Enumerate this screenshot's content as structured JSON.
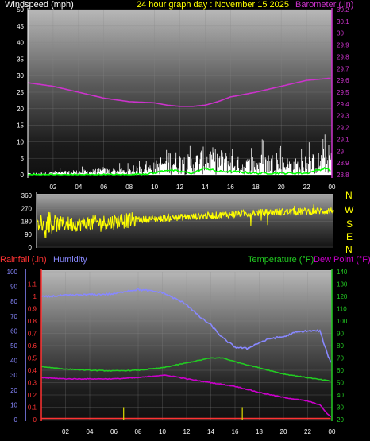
{
  "header": {
    "wind_label": "Windspeed (mph)",
    "graph_title": "24 hour graph day : November 15 2025",
    "baro_label": "Barometer (.in)"
  },
  "middle": {
    "direction_letters": [
      "N",
      "W",
      "S",
      "E",
      "N"
    ]
  },
  "bottom": {
    "rain_label": "Rainfall (.in)",
    "humidity_label": "Humidity",
    "temp_label": "Temperature (°F)",
    "dew_label": "Dew Point (°F)"
  },
  "colors": {
    "wind": "#ffffff",
    "gust": "#ffffff",
    "wind_avg": "#00ff00",
    "barometer": "#cc33cc",
    "direction": "#ffff00",
    "rain": "#ff3333",
    "humidity": "#8888ff",
    "temperature": "#22cc22",
    "dewpoint": "#cc00cc",
    "label_yellow": "#ffff00",
    "label_cyan": "#00ffff"
  },
  "chart_data": [
    {
      "type": "line",
      "name": "wind_barometer",
      "x_tick_labels": [
        "02",
        "04",
        "06",
        "08",
        "10",
        "12",
        "14",
        "16",
        "18",
        "20",
        "22",
        "00"
      ],
      "x_hours": [
        2,
        4,
        6,
        8,
        10,
        12,
        14,
        16,
        18,
        20,
        22,
        24
      ],
      "left_axis": {
        "label": "Windspeed (mph)",
        "ticks": [
          0,
          5,
          10,
          15,
          20,
          25,
          30,
          35,
          40,
          45,
          50
        ],
        "ylim": [
          0,
          50
        ]
      },
      "right_axis": {
        "label": "Barometer (.in)",
        "ticks": [
          28.8,
          28.9,
          29,
          29.1,
          29.2,
          29.3,
          29.4,
          29.5,
          29.6,
          29.7,
          29.8,
          29.9,
          30,
          30.1,
          30.2
        ],
        "ylim": [
          28.8,
          30.2
        ]
      },
      "series": [
        {
          "axis": "right",
          "points": [
            [
              0,
              29.58
            ],
            [
              2,
              29.55
            ],
            [
              4,
              29.5
            ],
            [
              6,
              29.45
            ],
            [
              8,
              29.42
            ],
            [
              10,
              29.41
            ],
            [
              11,
              29.39
            ],
            [
              12,
              29.38
            ],
            [
              13,
              29.38
            ],
            [
              14,
              29.39
            ],
            [
              15,
              29.42
            ],
            [
              16,
              29.46
            ],
            [
              18,
              29.5
            ],
            [
              20,
              29.55
            ],
            [
              22,
              29.6
            ],
            [
              24,
              29.62
            ]
          ]
        },
        {
          "axis": "left",
          "points": [
            [
              0,
              0.5
            ],
            [
              2,
              1
            ],
            [
              4,
              1.5
            ],
            [
              6,
              2
            ],
            [
              8,
              2
            ],
            [
              10,
              4
            ],
            [
              11,
              8
            ],
            [
              12,
              7
            ],
            [
              13,
              6
            ],
            [
              14,
              9
            ],
            [
              15,
              8
            ],
            [
              16,
              7
            ],
            [
              17,
              5
            ],
            [
              18,
              6
            ],
            [
              19,
              7
            ],
            [
              20,
              6
            ],
            [
              21,
              5
            ],
            [
              22,
              6
            ],
            [
              23,
              7
            ],
            [
              24,
              10
            ]
          ]
        },
        {
          "axis": "left",
          "points": [
            [
              0,
              0
            ],
            [
              8,
              0
            ],
            [
              10,
              0.5
            ],
            [
              11,
              1.5
            ],
            [
              12,
              1
            ],
            [
              13,
              0.5
            ],
            [
              14,
              2
            ],
            [
              15,
              1
            ],
            [
              16,
              1
            ],
            [
              18,
              0.5
            ],
            [
              20,
              0.5
            ],
            [
              22,
              0.5
            ],
            [
              23.5,
              2
            ],
            [
              24,
              1
            ]
          ]
        }
      ]
    },
    {
      "type": "scatter",
      "name": "wind_direction",
      "axis": {
        "ticks": [
          0,
          90,
          180,
          270,
          360
        ],
        "ylim": [
          0,
          360
        ]
      },
      "x_tick_labels": [
        "02",
        "04",
        "06",
        "08",
        "10",
        "12",
        "14",
        "16",
        "18",
        "20",
        "22",
        "00"
      ],
      "series": [
        {
          "points": [
            [
              0,
              150
            ],
            [
              2,
              160
            ],
            [
              4,
              165
            ],
            [
              6,
              175
            ],
            [
              8,
              190
            ],
            [
              10,
              200
            ],
            [
              12,
              210
            ],
            [
              14,
              220
            ],
            [
              16,
              230
            ],
            [
              18,
              240
            ],
            [
              20,
              245
            ],
            [
              22,
              250
            ],
            [
              24,
              255
            ]
          ]
        }
      ]
    },
    {
      "type": "line",
      "name": "temp_humidity_rain",
      "x_tick_labels": [
        "02",
        "04",
        "06",
        "08",
        "10",
        "12",
        "14",
        "16",
        "18",
        "20",
        "22",
        "00"
      ],
      "x_hours": [
        2,
        4,
        6,
        8,
        10,
        12,
        14,
        16,
        18,
        20,
        22,
        24
      ],
      "humidity_axis": {
        "label": "Humidity",
        "ticks": [
          0,
          10,
          20,
          30,
          40,
          50,
          60,
          70,
          80,
          90,
          100
        ],
        "ylim": [
          0,
          100
        ]
      },
      "rain_axis": {
        "label": "Rainfall (.in)",
        "ticks": [
          0,
          0.1,
          0.2,
          0.3,
          0.4,
          0.5,
          0.6,
          0.7,
          0.8,
          0.9,
          1,
          1.1
        ],
        "ylim": [
          0,
          1.2
        ]
      },
      "temp_axis": {
        "label": "Temperature (°F)",
        "ticks": [
          20,
          30,
          40,
          50,
          60,
          70,
          80,
          90,
          100,
          110,
          120,
          130,
          140
        ],
        "ylim": [
          20,
          140
        ]
      },
      "series": [
        {
          "name": "Humidity",
          "axis": "humidity",
          "points": [
            [
              0,
              83
            ],
            [
              2,
              84
            ],
            [
              4,
              84.5
            ],
            [
              6,
              85
            ],
            [
              7,
              87
            ],
            [
              8,
              88
            ],
            [
              9,
              87
            ],
            [
              10,
              86
            ],
            [
              11,
              82
            ],
            [
              12,
              78
            ],
            [
              13,
              70
            ],
            [
              14,
              64
            ],
            [
              15,
              55
            ],
            [
              16,
              49
            ],
            [
              17,
              48
            ],
            [
              18,
              52
            ],
            [
              19,
              55
            ],
            [
              20,
              56
            ],
            [
              21,
              59
            ],
            [
              22,
              60
            ],
            [
              23,
              60
            ],
            [
              23.6,
              45
            ],
            [
              24,
              37
            ]
          ]
        },
        {
          "name": "Temperature (°F)",
          "axis": "temp",
          "points": [
            [
              0,
              63
            ],
            [
              2,
              61
            ],
            [
              4,
              60
            ],
            [
              6,
              59.5
            ],
            [
              8,
              60
            ],
            [
              10,
              62
            ],
            [
              12,
              66
            ],
            [
              13,
              68
            ],
            [
              14,
              70
            ],
            [
              15,
              70
            ],
            [
              16,
              67
            ],
            [
              18,
              62
            ],
            [
              20,
              57
            ],
            [
              22,
              54
            ],
            [
              24,
              51
            ]
          ]
        },
        {
          "name": "Dew Point (°F)",
          "axis": "temp",
          "points": [
            [
              0,
              54
            ],
            [
              2,
              53
            ],
            [
              4,
              53
            ],
            [
              6,
              53
            ],
            [
              8,
              54
            ],
            [
              10,
              56
            ],
            [
              11,
              55
            ],
            [
              12,
              53
            ],
            [
              14,
              50
            ],
            [
              16,
              47
            ],
            [
              18,
              42
            ],
            [
              20,
              38
            ],
            [
              22,
              35
            ],
            [
              23,
              32
            ],
            [
              23.6,
              25
            ],
            [
              24,
              21
            ]
          ]
        },
        {
          "name": "Rainfall (.in)",
          "axis": "rain",
          "points": [
            [
              0,
              0.01
            ],
            [
              24,
              0.01
            ]
          ]
        },
        {
          "name": "rain_rate",
          "axis": "rain",
          "type": "bar",
          "points": [
            [
              6.8,
              0.1
            ],
            [
              16.6,
              0.1
            ]
          ]
        }
      ]
    }
  ]
}
